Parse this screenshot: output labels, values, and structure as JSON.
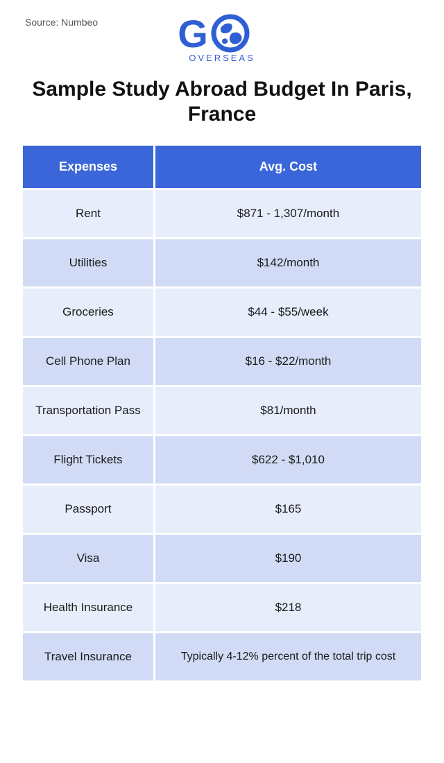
{
  "source_label": "Source: Numbeo",
  "logo": {
    "text_main": "G",
    "brand_sub": "OVERSEAS",
    "color": "#2f5fd4"
  },
  "title": "Sample Study Abroad Budget In Paris, France",
  "table": {
    "header_bg": "#3a66da",
    "header_fg": "#ffffff",
    "row_colors": [
      "#e7edfb",
      "#d1dbf5"
    ],
    "columns": [
      "Expenses",
      "Avg. Cost"
    ],
    "rows": [
      [
        "Rent",
        "$871 - 1,307/month"
      ],
      [
        "Utilities",
        "$142/month"
      ],
      [
        "Groceries",
        "$44 - $55/week"
      ],
      [
        "Cell Phone Plan",
        "$16 - $22/month"
      ],
      [
        "Transportation Pass",
        "$81/month"
      ],
      [
        "Flight Tickets",
        "$622 - $1,010"
      ],
      [
        "Passport",
        "$165"
      ],
      [
        "Visa",
        "$190"
      ],
      [
        "Health Insurance",
        "$218"
      ],
      [
        "Travel Insurance",
        "Typically 4-12% percent of the total trip cost"
      ]
    ]
  }
}
